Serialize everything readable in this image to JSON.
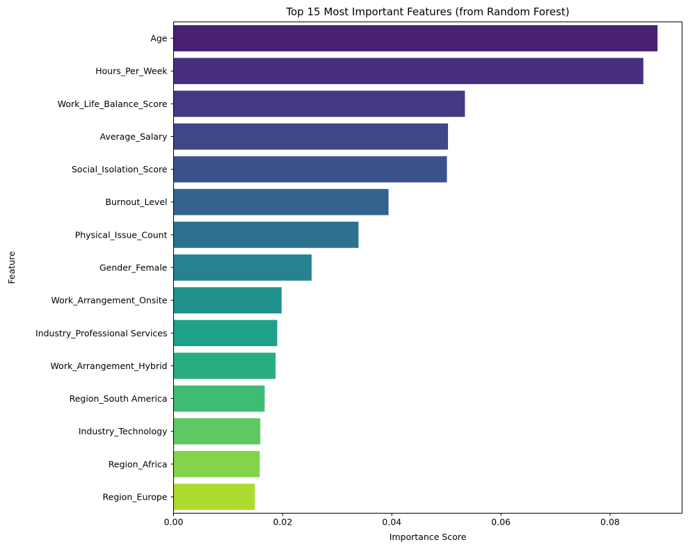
{
  "chart_data": {
    "type": "bar",
    "orientation": "horizontal",
    "title": "Top 15 Most Important Features (from Random Forest)",
    "xlabel": "Importance Score",
    "ylabel": "Feature",
    "xlim": [
      0,
      0.0932
    ],
    "xticks": [
      0.0,
      0.02,
      0.04,
      0.06,
      0.08
    ],
    "xtick_labels": [
      "0.00",
      "0.02",
      "0.04",
      "0.06",
      "0.08"
    ],
    "grid": false,
    "legend": "none",
    "categories": [
      "Age",
      "Hours_Per_Week",
      "Work_Life_Balance_Score",
      "Average_Salary",
      "Social_Isolation_Score",
      "Burnout_Level",
      "Physical_Issue_Count",
      "Gender_Female",
      "Work_Arrangement_Onsite",
      "Industry_Professional Services",
      "Work_Arrangement_Hybrid",
      "Region_South America",
      "Industry_Technology",
      "Region_Africa",
      "Region_Europe"
    ],
    "values": [
      0.0887,
      0.0861,
      0.0534,
      0.0503,
      0.0501,
      0.0394,
      0.0339,
      0.0253,
      0.0198,
      0.019,
      0.0187,
      0.0167,
      0.0159,
      0.0158,
      0.0149
    ],
    "colors": [
      "#482173",
      "#472f7d",
      "#443a83",
      "#404688",
      "#3b528b",
      "#33638d",
      "#2c728e",
      "#26828e",
      "#21918c",
      "#1fa088",
      "#28ae80",
      "#3fbc73",
      "#5ec962",
      "#84d44b",
      "#addc30"
    ]
  }
}
